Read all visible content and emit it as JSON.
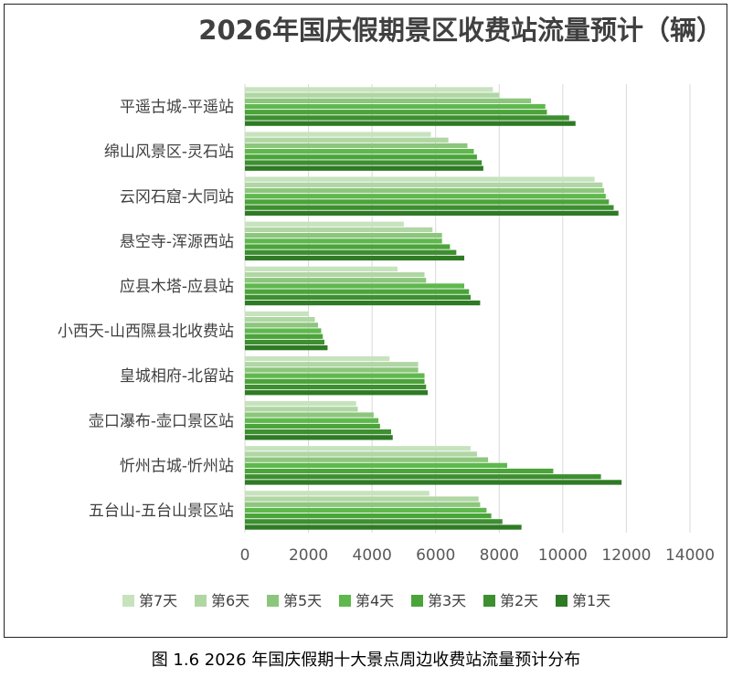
{
  "chart_data": {
    "type": "bar",
    "orientation": "horizontal",
    "title": "2026年国庆假期景区收费站流量预计（辆）",
    "caption": "图 1.6 2026 年国庆假期十大景点周边收费站流量预计分布",
    "categories": [
      "平遥古城-平遥站",
      "绵山风景区-灵石站",
      "云冈石窟-大同站",
      "悬空寺-浑源西站",
      "应县木塔-应县站",
      "小西天-山西隰县北收费站",
      "皇城相府-北留站",
      "壶口瀑布-壶口景区站",
      "忻州古城-忻州站",
      "五台山-五台山景区站"
    ],
    "series": [
      {
        "name": "第7天",
        "color": "#c7e3be",
        "values": [
          7800,
          5850,
          11000,
          5000,
          4800,
          2000,
          4550,
          3500,
          7100,
          5800
        ]
      },
      {
        "name": "第6天",
        "color": "#b0d6a4",
        "values": [
          8000,
          6400,
          11250,
          5900,
          5650,
          2200,
          5450,
          3550,
          7300,
          7350
        ]
      },
      {
        "name": "第5天",
        "color": "#8cc67c",
        "values": [
          9000,
          7000,
          11300,
          6200,
          5700,
          2300,
          5450,
          4050,
          7650,
          7400
        ]
      },
      {
        "name": "第4天",
        "color": "#5fb84d",
        "values": [
          9450,
          7200,
          11350,
          6200,
          6900,
          2400,
          5650,
          4200,
          8250,
          7600
        ]
      },
      {
        "name": "第3天",
        "color": "#4ba43a",
        "values": [
          9500,
          7300,
          11450,
          6450,
          7050,
          2450,
          5650,
          4250,
          9700,
          7750
        ]
      },
      {
        "name": "第2天",
        "color": "#3d8f30",
        "values": [
          10200,
          7450,
          11600,
          6650,
          7100,
          2500,
          5700,
          4600,
          11200,
          8100
        ]
      },
      {
        "name": "第1天",
        "color": "#2f7a25",
        "values": [
          10400,
          7500,
          11750,
          6900,
          7400,
          2600,
          5750,
          4650,
          11850,
          8700
        ]
      }
    ],
    "xlim": [
      0,
      14000
    ],
    "xticks": [
      "0",
      "2000",
      "4000",
      "6000",
      "8000",
      "10000",
      "12000",
      "14000"
    ],
    "grid": true,
    "legend_position": "bottom"
  }
}
